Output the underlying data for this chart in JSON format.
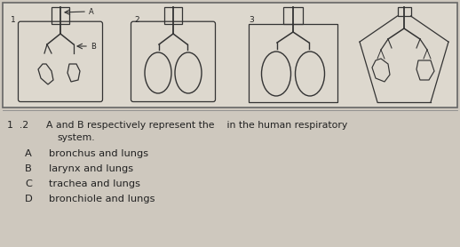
{
  "bg_color": "#cec8be",
  "box_bg": "#ddd8ce",
  "box_edge": "#666666",
  "line_color": "#333333",
  "text_color": "#222222",
  "question_number": "1  .2",
  "question_line1": "A and B respectively represent the    in the human respiratory",
  "question_line2": "system.",
  "options": [
    {
      "letter": "A",
      "text": "bronchus and lungs"
    },
    {
      "letter": "B",
      "text": "larynx and lungs"
    },
    {
      "letter": "C",
      "text": "trachea and lungs"
    },
    {
      "letter": "D",
      "text": "bronchiole and lungs"
    }
  ],
  "fig_width": 5.18,
  "fig_height": 2.78,
  "dpi": 100
}
